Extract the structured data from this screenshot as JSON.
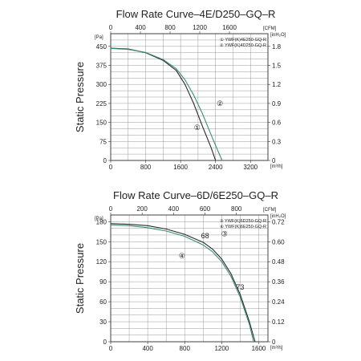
{
  "chart_data": [
    {
      "type": "line",
      "title": "Flow Rate Curve–4E/D250–GQ–R",
      "ylabel": "Static Pressure",
      "x_bottom": {
        "unit": "[m³/h]",
        "ticks": [
          "0",
          "800",
          "1600",
          "2400",
          "3200"
        ],
        "range": [
          0,
          3600
        ]
      },
      "x_top": {
        "unit": "[CFM]",
        "ticks": [
          "0",
          "400",
          "800",
          "1200",
          "1600"
        ],
        "range": [
          0,
          2118.8
        ]
      },
      "y_left": {
        "unit": "[Pa]",
        "ticks": [
          "0",
          "75",
          "150",
          "225",
          "300",
          "375",
          "450"
        ],
        "range": [
          0,
          500
        ]
      },
      "y_right": {
        "unit": "[inH₂O]",
        "ticks": [
          "0",
          "0.3",
          "0.6",
          "0.9",
          "1.2",
          "1.5",
          "1.8"
        ],
        "range": [
          0,
          2.0
        ]
      },
      "grid": true,
      "legend": [
        "① YWF(K)4E250-GQ-R",
        "② YWF(K)4D250-GQ-R"
      ],
      "annotations": [
        {
          "text": "①",
          "x": 1980,
          "y": 120
        },
        {
          "text": "②",
          "x": 2500,
          "y": 215
        }
      ],
      "series": [
        {
          "name": "① YWF(K)4E250-GQ-R",
          "color": "#2a2a2a",
          "x": [
            0,
            400,
            800,
            1200,
            1500,
            1700,
            1900,
            2100,
            2300,
            2400
          ],
          "y": [
            443,
            440,
            425,
            395,
            355,
            300,
            225,
            135,
            50,
            0
          ]
        },
        {
          "name": "② YWF(K)4D250-GQ-R",
          "color": "#3a8c7a",
          "x": [
            0,
            400,
            800,
            1200,
            1500,
            1700,
            1900,
            2100,
            2350,
            2550
          ],
          "y": [
            442,
            438,
            426,
            398,
            362,
            318,
            258,
            185,
            80,
            0
          ]
        }
      ]
    },
    {
      "type": "line",
      "title": "Flow Rate Curve–6D/6E250–GQ–R",
      "ylabel": "Static Pressure",
      "x_bottom": {
        "unit": "[m³/h]",
        "ticks": [
          "0",
          "400",
          "800",
          "1200",
          "1600"
        ],
        "range": [
          0,
          1700
        ]
      },
      "x_top": {
        "unit": "[CFM]",
        "ticks": [
          "0",
          "200",
          "400",
          "600",
          "800"
        ],
        "range": [
          0,
          1000.6
        ]
      },
      "y_left": {
        "unit": "[Pa]",
        "ticks": [
          "0",
          "30",
          "60",
          "90",
          "120",
          "150",
          "180"
        ],
        "range": [
          0,
          190
        ]
      },
      "y_right": {
        "unit": "[inH₂O]",
        "ticks": [
          "0",
          "0.12",
          "0.24",
          "0.36",
          "0.48",
          "0.60",
          "0.72"
        ],
        "range": [
          0,
          0.76
        ]
      },
      "grid": true,
      "legend": [
        "③ YWF(K)6D250-GQ-R",
        "④ YWF(K)6E250-GQ-R"
      ],
      "annotations": [
        {
          "text": "68",
          "x": 1020,
          "y": 155
        },
        {
          "text": "③",
          "x": 1230,
          "y": 158
        },
        {
          "text": "④",
          "x": 770,
          "y": 125
        },
        {
          "text": "73",
          "x": 1400,
          "y": 78
        }
      ],
      "series": [
        {
          "name": "③ YWF(K)6D250-GQ-R",
          "color": "#2a2a2a",
          "x": [
            0,
            200,
            400,
            600,
            800,
            1000,
            1100,
            1200,
            1300,
            1400,
            1500,
            1560
          ],
          "y": [
            177,
            176,
            174,
            169,
            161,
            149,
            139,
            124,
            102,
            71,
            30,
            0
          ]
        },
        {
          "name": "④ YWF(K)6E250-GQ-R",
          "color": "#3a8c7a",
          "x": [
            0,
            200,
            400,
            600,
            800,
            1000,
            1100,
            1200,
            1300,
            1400,
            1500,
            1545
          ],
          "y": [
            175,
            174,
            171,
            166,
            158,
            145,
            135,
            120,
            98,
            67,
            26,
            0
          ]
        }
      ]
    }
  ]
}
